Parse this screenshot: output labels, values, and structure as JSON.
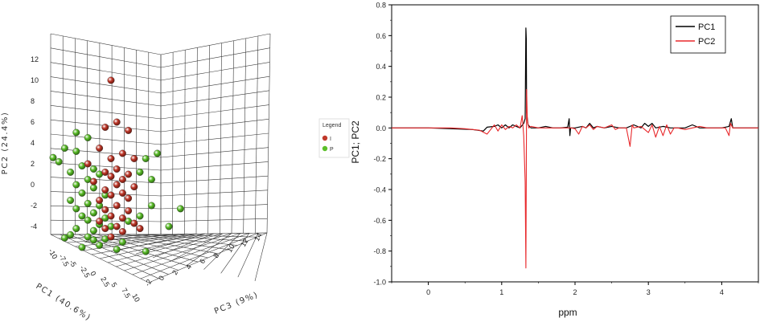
{
  "chart_data": [
    {
      "type": "scatter",
      "subtype": "3d-scatter",
      "xlabel": "PC1 (40.6%)",
      "ylabel": "PC2 (24.4%)",
      "zlabel": "PC3 (9%)",
      "y_ticks": [
        "-4",
        "-2",
        "0",
        "2",
        "4",
        "6",
        "8",
        "10",
        "12"
      ],
      "x_ticks": [
        "-10",
        "-7.5",
        "-5",
        "-2.5",
        "0",
        "2.5",
        "5",
        "7.5",
        "10"
      ],
      "z_ticks": [
        "-2",
        "0",
        "2",
        "4",
        "6",
        "8",
        "10",
        "12",
        "14"
      ],
      "legend": {
        "title": "Legend",
        "placement": "right",
        "entries": [
          {
            "label": "I",
            "color": "#c0392b"
          },
          {
            "label": "P",
            "color": "#5cbf2a"
          }
        ]
      },
      "series": [
        {
          "name": "I",
          "color": "#c0392b",
          "points": [
            [
              0,
              10
            ],
            [
              -1,
              5.5
            ],
            [
              1,
              6
            ],
            [
              3,
              5.2
            ],
            [
              -2,
              3.5
            ],
            [
              2,
              3
            ],
            [
              0,
              2.5
            ],
            [
              4,
              2.5
            ],
            [
              -4,
              2
            ],
            [
              1,
              1.5
            ],
            [
              -1,
              1.2
            ],
            [
              3,
              1
            ],
            [
              0,
              0.8
            ],
            [
              2,
              0.5
            ],
            [
              -3,
              0.3
            ],
            [
              1,
              0
            ],
            [
              4,
              -0.2
            ],
            [
              -1,
              -0.5
            ],
            [
              2,
              -0.8
            ],
            [
              0,
              -1
            ],
            [
              3,
              -1.3
            ],
            [
              -2,
              -1.5
            ],
            [
              1,
              -2
            ],
            [
              -1,
              -2.4
            ],
            [
              3,
              -2.5
            ],
            [
              0,
              -3
            ],
            [
              2,
              -3.2
            ],
            [
              -2,
              -3.5
            ],
            [
              4,
              -3.7
            ],
            [
              1,
              -4
            ],
            [
              -1,
              -4.2
            ],
            [
              2,
              -4.5
            ],
            [
              5,
              -4.2
            ],
            [
              0,
              -5
            ]
          ]
        },
        {
          "name": "P",
          "color": "#5cbf2a",
          "points": [
            [
              -6,
              5
            ],
            [
              -4,
              4.5
            ],
            [
              -8,
              3.5
            ],
            [
              -6,
              3.2
            ],
            [
              -10,
              2.6
            ],
            [
              -9,
              2.2
            ],
            [
              -5,
              1.8
            ],
            [
              -3,
              1.5
            ],
            [
              -7,
              1.2
            ],
            [
              -2,
              1
            ],
            [
              6,
              2.5
            ],
            [
              8,
              3
            ],
            [
              5,
              1.2
            ],
            [
              7,
              0.5
            ],
            [
              -4,
              0.5
            ],
            [
              -6,
              0
            ],
            [
              -3,
              -0.3
            ],
            [
              -5,
              -0.8
            ],
            [
              -1,
              -1
            ],
            [
              -7,
              -1.5
            ],
            [
              -4,
              -1.8
            ],
            [
              -2,
              -2
            ],
            [
              -6,
              -2.3
            ],
            [
              -3,
              -2.7
            ],
            [
              -5,
              -3
            ],
            [
              -1,
              -3.2
            ],
            [
              -4,
              -3.4
            ],
            [
              -2,
              -3.8
            ],
            [
              0,
              -4
            ],
            [
              -6,
              -4.2
            ],
            [
              -3,
              -4.4
            ],
            [
              3,
              -3.5
            ],
            [
              5,
              -3
            ],
            [
              7,
              -2
            ],
            [
              12,
              -2.3
            ],
            [
              -7,
              -4.8
            ],
            [
              -4,
              -5
            ],
            [
              -1,
              -5.2
            ],
            [
              -8,
              -5.1
            ],
            [
              -3,
              -5.3
            ],
            [
              6,
              -6.4
            ],
            [
              10,
              -4
            ],
            [
              -2,
              -5.8
            ],
            [
              1,
              -6.2
            ],
            [
              -5,
              -6
            ],
            [
              2,
              -5.5
            ]
          ]
        }
      ]
    },
    {
      "type": "line",
      "xlabel": "ppm",
      "ylabel": "PC1; PC2",
      "xlim": [
        -0.5,
        4.5
      ],
      "ylim": [
        -1.0,
        0.8
      ],
      "x_ticks": [
        "0",
        "1",
        "2",
        "3",
        "4"
      ],
      "y_ticks": [
        "-1.0",
        "-0.8",
        "-0.6",
        "-0.4",
        "-0.2",
        "0.0",
        "0.2",
        "0.4",
        "0.6",
        "0.8"
      ],
      "legend_placement": "top-right",
      "series": [
        {
          "name": "PC1",
          "color": "#000000",
          "points": [
            [
              -0.5,
              0
            ],
            [
              0,
              0
            ],
            [
              0.3,
              -0.005
            ],
            [
              0.6,
              -0.01
            ],
            [
              0.75,
              -0.02
            ],
            [
              0.8,
              0.005
            ],
            [
              0.9,
              0.01
            ],
            [
              0.95,
              0.02
            ],
            [
              1.0,
              0.0
            ],
            [
              1.05,
              0.02
            ],
            [
              1.1,
              0.0
            ],
            [
              1.15,
              0.02
            ],
            [
              1.2,
              0.01
            ],
            [
              1.25,
              0.0
            ],
            [
              1.3,
              0.03
            ],
            [
              1.32,
              0.06
            ],
            [
              1.33,
              0.65
            ],
            [
              1.335,
              0.58
            ],
            [
              1.34,
              0.1
            ],
            [
              1.36,
              0.02
            ],
            [
              1.4,
              0.0
            ],
            [
              1.5,
              0.0
            ],
            [
              1.6,
              0.01
            ],
            [
              1.7,
              0.0
            ],
            [
              1.8,
              0.0
            ],
            [
              1.9,
              0.005
            ],
            [
              1.92,
              0.06
            ],
            [
              1.93,
              -0.05
            ],
            [
              1.94,
              0.0
            ],
            [
              2.0,
              0.0
            ],
            [
              2.1,
              0.01
            ],
            [
              2.15,
              0.0
            ],
            [
              2.2,
              0.03
            ],
            [
              2.25,
              0.0
            ],
            [
              2.3,
              0.01
            ],
            [
              2.4,
              0.0
            ],
            [
              2.5,
              0.01
            ],
            [
              2.6,
              0.0
            ],
            [
              2.7,
              0.0
            ],
            [
              2.8,
              0.02
            ],
            [
              2.9,
              0.0
            ],
            [
              2.95,
              0.03
            ],
            [
              3.0,
              0.01
            ],
            [
              3.05,
              0.03
            ],
            [
              3.1,
              0.0
            ],
            [
              3.2,
              0.01
            ],
            [
              3.3,
              0.0
            ],
            [
              3.4,
              0.0
            ],
            [
              3.5,
              0.0
            ],
            [
              3.6,
              0.02
            ],
            [
              3.7,
              0.0
            ],
            [
              3.8,
              0.0
            ],
            [
              3.9,
              0.0
            ],
            [
              4.0,
              0.0
            ],
            [
              4.1,
              0.01
            ],
            [
              4.13,
              0.06
            ],
            [
              4.15,
              0.0
            ],
            [
              4.3,
              0.0
            ],
            [
              4.5,
              0.0
            ]
          ]
        },
        {
          "name": "PC2",
          "color": "#e8282b",
          "points": [
            [
              -0.5,
              0
            ],
            [
              0,
              0
            ],
            [
              0.3,
              0
            ],
            [
              0.5,
              -0.005
            ],
            [
              0.7,
              -0.015
            ],
            [
              0.8,
              -0.04
            ],
            [
              0.85,
              -0.01
            ],
            [
              0.9,
              0.02
            ],
            [
              0.95,
              -0.02
            ],
            [
              1.0,
              0.02
            ],
            [
              1.05,
              -0.01
            ],
            [
              1.1,
              0.01
            ],
            [
              1.15,
              0.0
            ],
            [
              1.2,
              0.02
            ],
            [
              1.25,
              0.0
            ],
            [
              1.28,
              0.08
            ],
            [
              1.3,
              -0.05
            ],
            [
              1.32,
              -0.35
            ],
            [
              1.33,
              -0.91
            ],
            [
              1.335,
              -0.3
            ],
            [
              1.34,
              0.25
            ],
            [
              1.35,
              0.05
            ],
            [
              1.37,
              0.0
            ],
            [
              1.4,
              0.01
            ],
            [
              1.5,
              0.0
            ],
            [
              1.6,
              0.0
            ],
            [
              1.7,
              0.0
            ],
            [
              1.8,
              0.0
            ],
            [
              1.9,
              0.0
            ],
            [
              1.95,
              0.0
            ],
            [
              2.0,
              -0.005
            ],
            [
              2.05,
              -0.04
            ],
            [
              2.1,
              0.01
            ],
            [
              2.15,
              0.0
            ],
            [
              2.2,
              0.02
            ],
            [
              2.25,
              -0.01
            ],
            [
              2.3,
              0.01
            ],
            [
              2.4,
              0.0
            ],
            [
              2.5,
              0.02
            ],
            [
              2.55,
              -0.01
            ],
            [
              2.6,
              0.0
            ],
            [
              2.7,
              0.0
            ],
            [
              2.75,
              -0.12
            ],
            [
              2.78,
              0.02
            ],
            [
              2.8,
              0.0
            ],
            [
              2.9,
              0.01
            ],
            [
              3.0,
              -0.03
            ],
            [
              3.05,
              0.02
            ],
            [
              3.1,
              -0.06
            ],
            [
              3.15,
              0.01
            ],
            [
              3.2,
              -0.05
            ],
            [
              3.25,
              0.02
            ],
            [
              3.3,
              -0.04
            ],
            [
              3.35,
              0.0
            ],
            [
              3.4,
              0.0
            ],
            [
              3.5,
              -0.01
            ],
            [
              3.6,
              0.0
            ],
            [
              3.7,
              0.01
            ],
            [
              3.8,
              0.0
            ],
            [
              3.9,
              0.0
            ],
            [
              4.0,
              0.0
            ],
            [
              4.05,
              0.0
            ],
            [
              4.1,
              -0.05
            ],
            [
              4.12,
              0.03
            ],
            [
              4.15,
              0.0
            ],
            [
              4.3,
              0.0
            ],
            [
              4.5,
              0.0
            ]
          ]
        }
      ]
    }
  ]
}
